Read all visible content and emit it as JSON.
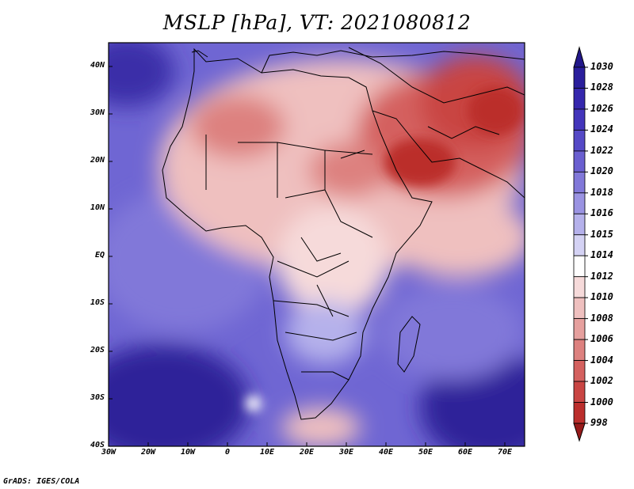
{
  "title": "MSLP [hPa], VT: 2021080812",
  "credit": "GrADS: IGES/COLA",
  "map": {
    "variable": "MSLP",
    "units": "hPa",
    "valid_time": "2021080812",
    "lon_range": [
      -30,
      75
    ],
    "lat_range": [
      -40,
      45
    ],
    "lat_ticks": [
      {
        "value": 40,
        "label": "40N"
      },
      {
        "value": 30,
        "label": "30N"
      },
      {
        "value": 20,
        "label": "20N"
      },
      {
        "value": 10,
        "label": "10N"
      },
      {
        "value": 0,
        "label": "EQ"
      },
      {
        "value": -10,
        "label": "10S"
      },
      {
        "value": -20,
        "label": "20S"
      },
      {
        "value": -30,
        "label": "30S"
      },
      {
        "value": -40,
        "label": "40S"
      }
    ],
    "lon_ticks": [
      {
        "value": -30,
        "label": "30W"
      },
      {
        "value": -20,
        "label": "20W"
      },
      {
        "value": -10,
        "label": "10W"
      },
      {
        "value": 0,
        "label": "0"
      },
      {
        "value": 10,
        "label": "10E"
      },
      {
        "value": 20,
        "label": "20E"
      },
      {
        "value": 30,
        "label": "30E"
      },
      {
        "value": 40,
        "label": "40E"
      },
      {
        "value": 50,
        "label": "50E"
      },
      {
        "value": 60,
        "label": "60E"
      },
      {
        "value": 70,
        "label": "70E"
      }
    ]
  },
  "colorbar": {
    "levels": [
      {
        "label": "1030",
        "color": "#2a1e9c"
      },
      {
        "label": "1028",
        "color": "#3527ad"
      },
      {
        "label": "1026",
        "color": "#4335bb"
      },
      {
        "label": "1024",
        "color": "#5549c6"
      },
      {
        "label": "1022",
        "color": "#6a5fd0"
      },
      {
        "label": "1020",
        "color": "#8178d9"
      },
      {
        "label": "1018",
        "color": "#9a93e2"
      },
      {
        "label": "1016",
        "color": "#b5b1eb"
      },
      {
        "label": "1015",
        "color": "#d4d2f4"
      },
      {
        "label": "1014",
        "color": "#ffffff"
      },
      {
        "label": "1012",
        "color": "#f6dada"
      },
      {
        "label": "1010",
        "color": "#efc0bf"
      },
      {
        "label": "1008",
        "color": "#e6a09e"
      },
      {
        "label": "1006",
        "color": "#dd817f"
      },
      {
        "label": "1004",
        "color": "#d4615f"
      },
      {
        "label": "1002",
        "color": "#c94543"
      },
      {
        "label": "1000",
        "color": "#bb2e2c"
      },
      {
        "label": "998",
        "color": "#a8201f"
      }
    ],
    "top_color": "#22178a",
    "bottom_color": "#961a1a"
  }
}
